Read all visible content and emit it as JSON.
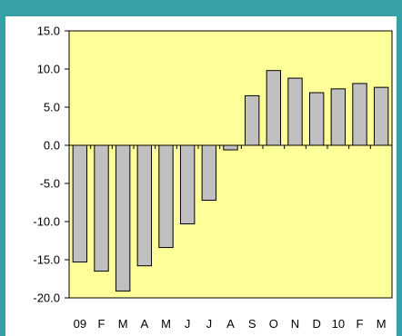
{
  "colors": {
    "frame": "#35a0a7",
    "plot_background": "#ffff99",
    "bar_fill": "#c0c0c0",
    "bar_stroke": "#000000"
  },
  "chart_data": {
    "type": "bar",
    "categories": [
      "09",
      "F",
      "M",
      "A",
      "M",
      "J",
      "J",
      "A",
      "S",
      "O",
      "N",
      "D",
      "10",
      "F",
      "M"
    ],
    "values": [
      -15.3,
      -16.5,
      -19.1,
      -15.8,
      -13.4,
      -10.3,
      -7.2,
      -0.6,
      6.5,
      9.8,
      8.8,
      6.9,
      7.4,
      8.1,
      7.6
    ],
    "ylim": [
      -20.0,
      15.0
    ],
    "yticks": [
      "15.0",
      "10.0",
      "5.0",
      "0.0",
      "-5.0",
      "-10.0",
      "-15.0",
      "-20.0"
    ],
    "grid": false,
    "legend": "none"
  }
}
